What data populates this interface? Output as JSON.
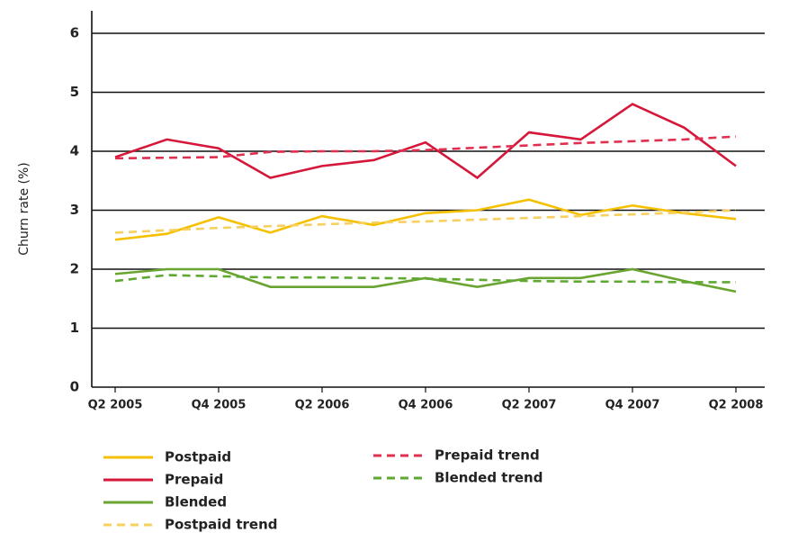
{
  "chart_data": {
    "type": "line",
    "y_label": "Churn rate (%)",
    "categories": [
      "Q2 2005",
      null,
      "Q4 2005",
      null,
      "Q2 2006",
      null,
      "Q4 2006",
      null,
      "Q2 2007",
      null,
      "Q4 2007",
      null,
      "Q2 2008"
    ],
    "ylim": [
      0,
      6
    ],
    "yticks": [
      0,
      1,
      2,
      3,
      4,
      5,
      6
    ],
    "grid": true,
    "series": [
      {
        "name": "Postpaid",
        "color": "#f5c000",
        "dashed": false,
        "values": [
          2.5,
          2.6,
          2.88,
          2.62,
          2.9,
          2.75,
          2.95,
          3.0,
          3.18,
          2.92,
          3.08,
          2.95,
          2.85
        ]
      },
      {
        "name": "Prepaid",
        "color": "#d5173a",
        "dashed": false,
        "values": [
          3.9,
          4.2,
          4.05,
          3.55,
          3.75,
          3.85,
          4.15,
          3.55,
          4.32,
          4.2,
          4.8,
          4.4,
          3.75
        ]
      },
      {
        "name": "Blended",
        "color": "#6aa531",
        "dashed": false,
        "values": [
          1.92,
          2.0,
          2.0,
          1.7,
          1.7,
          1.7,
          1.85,
          1.7,
          1.85,
          1.85,
          2.0,
          1.8,
          1.62
        ]
      },
      {
        "name": "Postpaid trend",
        "color": "#f7d060",
        "dashed": true,
        "values": [
          2.62,
          2.66,
          2.7,
          2.73,
          2.76,
          2.79,
          2.81,
          2.84,
          2.87,
          2.9,
          2.93,
          2.96,
          3.0
        ]
      },
      {
        "name": "Prepaid trend",
        "color": "#e03050",
        "dashed": true,
        "values": [
          3.88,
          3.89,
          3.9,
          3.99,
          4.0,
          4.0,
          4.02,
          4.06,
          4.1,
          4.14,
          4.17,
          4.2,
          4.25
        ]
      },
      {
        "name": "Blended trend",
        "color": "#5fa832",
        "dashed": true,
        "values": [
          1.8,
          1.9,
          1.88,
          1.86,
          1.86,
          1.85,
          1.84,
          1.82,
          1.8,
          1.79,
          1.79,
          1.78,
          1.78
        ]
      }
    ]
  }
}
